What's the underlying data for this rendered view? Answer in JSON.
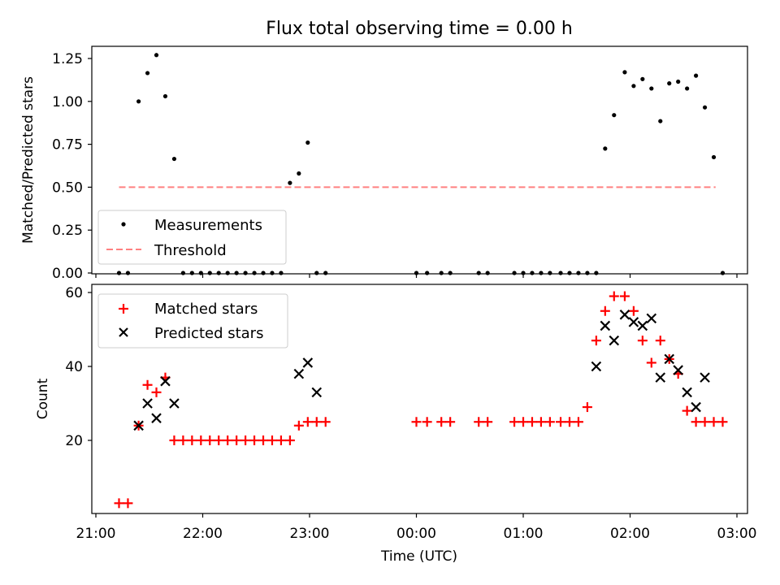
{
  "figure": {
    "title": "Flux total observing time = 0.00 h"
  },
  "chart_data": [
    {
      "type": "scatter",
      "title": "Flux total observing time = 0.00 h",
      "xlabel": "",
      "ylabel": "Matched/Predicted stars",
      "xlim": [
        "21:00",
        "03:00"
      ],
      "ylim": [
        0,
        1.33
      ],
      "yticks": [
        "0.00",
        "0.25",
        "0.50",
        "0.75",
        "1.00",
        "1.25"
      ],
      "grid": false,
      "legend": "lower-left",
      "series": [
        {
          "name": "Measurements",
          "marker": "dot",
          "color": "#000000",
          "x": [
            "21:13",
            "21:18",
            "21:24",
            "21:29",
            "21:34",
            "21:39",
            "21:44",
            "21:49",
            "21:54",
            "21:59",
            "22:04",
            "22:09",
            "22:14",
            "22:19",
            "22:24",
            "22:29",
            "22:34",
            "22:39",
            "22:44",
            "22:49",
            "22:54",
            "22:59",
            "23:04",
            "23:09",
            "00:00",
            "00:06",
            "00:14",
            "00:19",
            "00:35",
            "00:40",
            "00:55",
            "01:00",
            "01:05",
            "01:10",
            "01:15",
            "01:21",
            "01:26",
            "01:31",
            "01:36",
            "01:41",
            "01:46",
            "01:51",
            "01:57",
            "02:02",
            "02:07",
            "02:12",
            "02:17",
            "02:22",
            "02:27",
            "02:32",
            "02:37",
            "02:42",
            "02:47",
            "02:52"
          ],
          "y": [
            0,
            0,
            1.0,
            1.165,
            1.27,
            1.03,
            0.665,
            0,
            0,
            0,
            0,
            0,
            0,
            0,
            0,
            0,
            0,
            0,
            0,
            0.525,
            0.58,
            0.76,
            0,
            0,
            0,
            0,
            0,
            0,
            0,
            0,
            0,
            0,
            0,
            0,
            0,
            0,
            0,
            0,
            0,
            0,
            0.725,
            0.92,
            1.17,
            1.09,
            1.13,
            1.075,
            0.885,
            1.105,
            1.115,
            1.075,
            1.15,
            0.965,
            0.675,
            0
          ]
        },
        {
          "name": "Threshold",
          "style": "dashed",
          "color": "#ff8080",
          "x": [
            "21:13",
            "02:48"
          ],
          "y": [
            0.5,
            0.5
          ]
        }
      ]
    },
    {
      "type": "scatter",
      "title": "",
      "xlabel": "Time (UTC)",
      "ylabel": "Count",
      "xlim": [
        "21:00",
        "03:00"
      ],
      "ylim": [
        0,
        62
      ],
      "xticks": [
        "21:00",
        "22:00",
        "23:00",
        "00:00",
        "01:00",
        "02:00",
        "03:00"
      ],
      "yticks": [
        "20",
        "40",
        "60"
      ],
      "grid": false,
      "legend": "top-left",
      "series": [
        {
          "name": "Matched stars",
          "marker": "plus",
          "color": "#ff0000",
          "x": [
            "21:13",
            "21:18",
            "21:24",
            "21:29",
            "21:34",
            "21:39",
            "21:44",
            "21:49",
            "21:54",
            "21:59",
            "22:04",
            "22:09",
            "22:14",
            "22:19",
            "22:24",
            "22:29",
            "22:34",
            "22:39",
            "22:44",
            "22:49",
            "22:54",
            "22:59",
            "23:04",
            "23:09",
            "00:00",
            "00:06",
            "00:14",
            "00:19",
            "00:35",
            "00:40",
            "00:55",
            "01:00",
            "01:05",
            "01:10",
            "01:15",
            "01:21",
            "01:26",
            "01:31",
            "01:36",
            "01:41",
            "01:46",
            "01:51",
            "01:57",
            "02:02",
            "02:07",
            "02:12",
            "02:17",
            "02:22",
            "02:27",
            "02:32",
            "02:37",
            "02:42",
            "02:47",
            "02:52"
          ],
          "y": [
            3,
            3,
            24,
            35,
            33,
            37,
            20,
            20,
            20,
            20,
            20,
            20,
            20,
            20,
            20,
            20,
            20,
            20,
            20,
            20,
            24,
            25,
            25,
            25,
            25,
            25,
            25,
            25,
            25,
            25,
            25,
            25,
            25,
            25,
            25,
            25,
            25,
            25,
            29,
            47,
            55,
            59,
            59,
            55,
            47,
            41,
            47,
            42,
            38,
            28,
            25,
            25,
            25,
            25
          ]
        },
        {
          "name": "Predicted stars",
          "marker": "x",
          "color": "#000000",
          "x": [
            "21:24",
            "21:29",
            "21:34",
            "21:39",
            "21:44",
            "22:54",
            "22:59",
            "23:04",
            "01:41",
            "01:46",
            "01:51",
            "01:57",
            "02:02",
            "02:07",
            "02:12",
            "02:17",
            "02:22",
            "02:27",
            "02:32",
            "02:37",
            "02:42"
          ],
          "y": [
            24,
            30,
            26,
            36,
            30,
            38,
            41,
            33,
            40,
            51,
            47,
            54,
            52,
            51,
            53,
            37,
            42,
            39,
            33,
            29,
            37
          ]
        }
      ]
    }
  ]
}
